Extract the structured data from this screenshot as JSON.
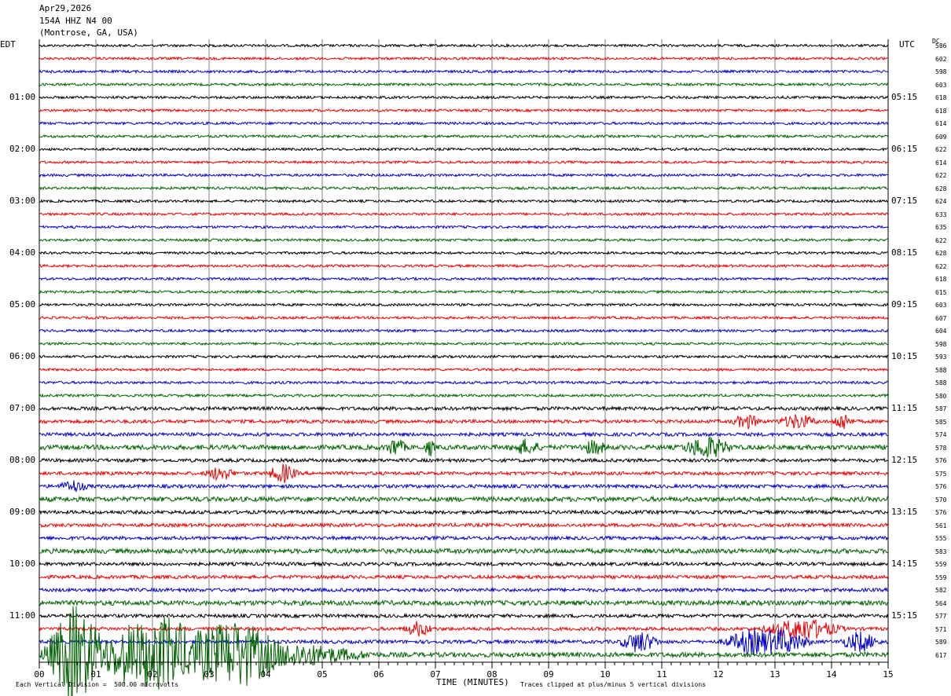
{
  "header": {
    "date": "Apr29,2026",
    "station": "154A HHZ N4 00",
    "location": "(Montrose, GA, USA)"
  },
  "left_zone": "EDT",
  "right_zone": "UTC",
  "dc_label": "DC",
  "footer": {
    "scale_note": "Each Vertical Division =  500.00 microvolts",
    "xlabel": "TIME (MINUTES)",
    "clip_note": "Traces clipped at plus/minus 5 vertical divisions"
  },
  "colors": {
    "cycle": [
      "#000000",
      "#ee0000",
      "#0000cc",
      "#006400"
    ],
    "grid": "#808080"
  },
  "chart_data": {
    "type": "line",
    "title": "154A HHZ N4 00",
    "xlabel": "TIME (MINUTES)",
    "xlim": [
      0,
      15
    ],
    "x_ticks": [
      "00",
      "01",
      "02",
      "03",
      "04",
      "05",
      "06",
      "07",
      "08",
      "09",
      "10",
      "11",
      "12",
      "13",
      "14",
      "15"
    ],
    "left_hour_labels": [
      "01:00",
      "02:00",
      "03:00",
      "04:00",
      "05:00",
      "06:00",
      "07:00",
      "08:00",
      "09:00",
      "10:00",
      "11:00"
    ],
    "right_hour_labels": [
      "05:15",
      "06:15",
      "07:15",
      "08:15",
      "09:15",
      "10:15",
      "11:15",
      "12:15",
      "13:15",
      "14:15",
      "15:15"
    ],
    "dc_offsets": [
      586,
      602,
      598,
      603,
      618,
      618,
      614,
      609,
      622,
      614,
      622,
      628,
      624,
      633,
      635,
      622,
      628,
      622,
      618,
      615,
      603,
      607,
      604,
      598,
      593,
      588,
      588,
      580,
      587,
      585,
      574,
      578,
      576,
      575,
      576,
      570,
      576,
      561,
      555,
      583,
      559,
      559,
      582,
      564,
      577,
      571,
      589,
      617
    ],
    "events": [
      {
        "row": 29,
        "minute": 12.5,
        "amp": 9,
        "dur": 0.3
      },
      {
        "row": 29,
        "minute": 13.4,
        "amp": 9,
        "dur": 0.4
      },
      {
        "row": 29,
        "minute": 14.2,
        "amp": 12,
        "dur": 0.2
      },
      {
        "row": 31,
        "minute": 6.3,
        "amp": 12,
        "dur": 0.2
      },
      {
        "row": 31,
        "minute": 6.9,
        "amp": 11,
        "dur": 0.1
      },
      {
        "row": 31,
        "minute": 8.6,
        "amp": 9,
        "dur": 0.3
      },
      {
        "row": 31,
        "minute": 9.8,
        "amp": 8,
        "dur": 0.3
      },
      {
        "row": 31,
        "minute": 11.8,
        "amp": 14,
        "dur": 0.5
      },
      {
        "row": 33,
        "minute": 3.2,
        "amp": 9,
        "dur": 0.3
      },
      {
        "row": 33,
        "minute": 4.3,
        "amp": 12,
        "dur": 0.3
      },
      {
        "row": 34,
        "minute": 0.6,
        "amp": 7,
        "dur": 0.3
      },
      {
        "row": 45,
        "minute": 6.7,
        "amp": 9,
        "dur": 0.3
      },
      {
        "row": 45,
        "minute": 13.5,
        "amp": 14,
        "dur": 0.8
      },
      {
        "row": 46,
        "minute": 10.6,
        "amp": 14,
        "dur": 0.4
      },
      {
        "row": 46,
        "minute": 12.6,
        "amp": 16,
        "dur": 0.6
      },
      {
        "row": 46,
        "minute": 13.2,
        "amp": 14,
        "dur": 0.5
      },
      {
        "row": 46,
        "minute": 14.5,
        "amp": 13,
        "dur": 0.4
      },
      {
        "row": 47,
        "minute": 0.6,
        "amp": 60,
        "dur": 0.6
      },
      {
        "row": 47,
        "minute": 2.3,
        "amp": 40,
        "dur": 1.2
      },
      {
        "row": 47,
        "minute": 3.5,
        "amp": 40,
        "dur": 0.8
      },
      {
        "row": 47,
        "minute": 1.5,
        "amp": 22,
        "dur": 1.2
      },
      {
        "row": 47,
        "minute": 4.5,
        "amp": 14,
        "dur": 1.5
      }
    ],
    "grid": true
  }
}
